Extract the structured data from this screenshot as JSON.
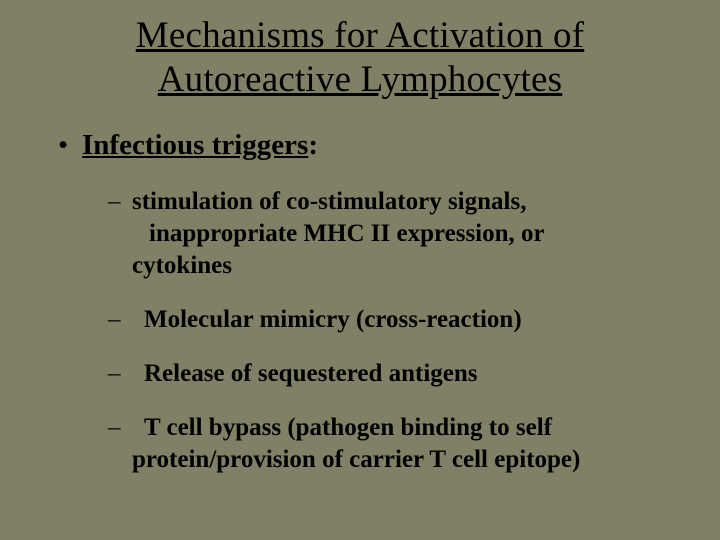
{
  "colors": {
    "background": "#808066",
    "text": "#000000"
  },
  "typography": {
    "family": "Times New Roman",
    "title_fontsize": 37,
    "level1_fontsize": 29,
    "level2_fontsize": 25
  },
  "title": {
    "line1": "Mechanisms for Activation of",
    "line2": "Autoreactive Lymphocytes"
  },
  "level1": {
    "bullet": "•",
    "text": "Infectious triggers",
    "colon": ":"
  },
  "items": [
    {
      "dash": "–",
      "line1": "stimulation of co-stimulatory signals,",
      "line2": " inappropriate MHC II expression, or",
      "line3": "cytokines"
    },
    {
      "dash": "–",
      "pad": " ",
      "line1": "Molecular mimicry (cross-reaction)"
    },
    {
      "dash": "–",
      "pad": " ",
      "line1": "Release of sequestered antigens"
    },
    {
      "dash": "–",
      "pad": " ",
      "line1": "T cell bypass (pathogen binding to self",
      "line2": "protein/provision of carrier T cell epitope)"
    }
  ]
}
